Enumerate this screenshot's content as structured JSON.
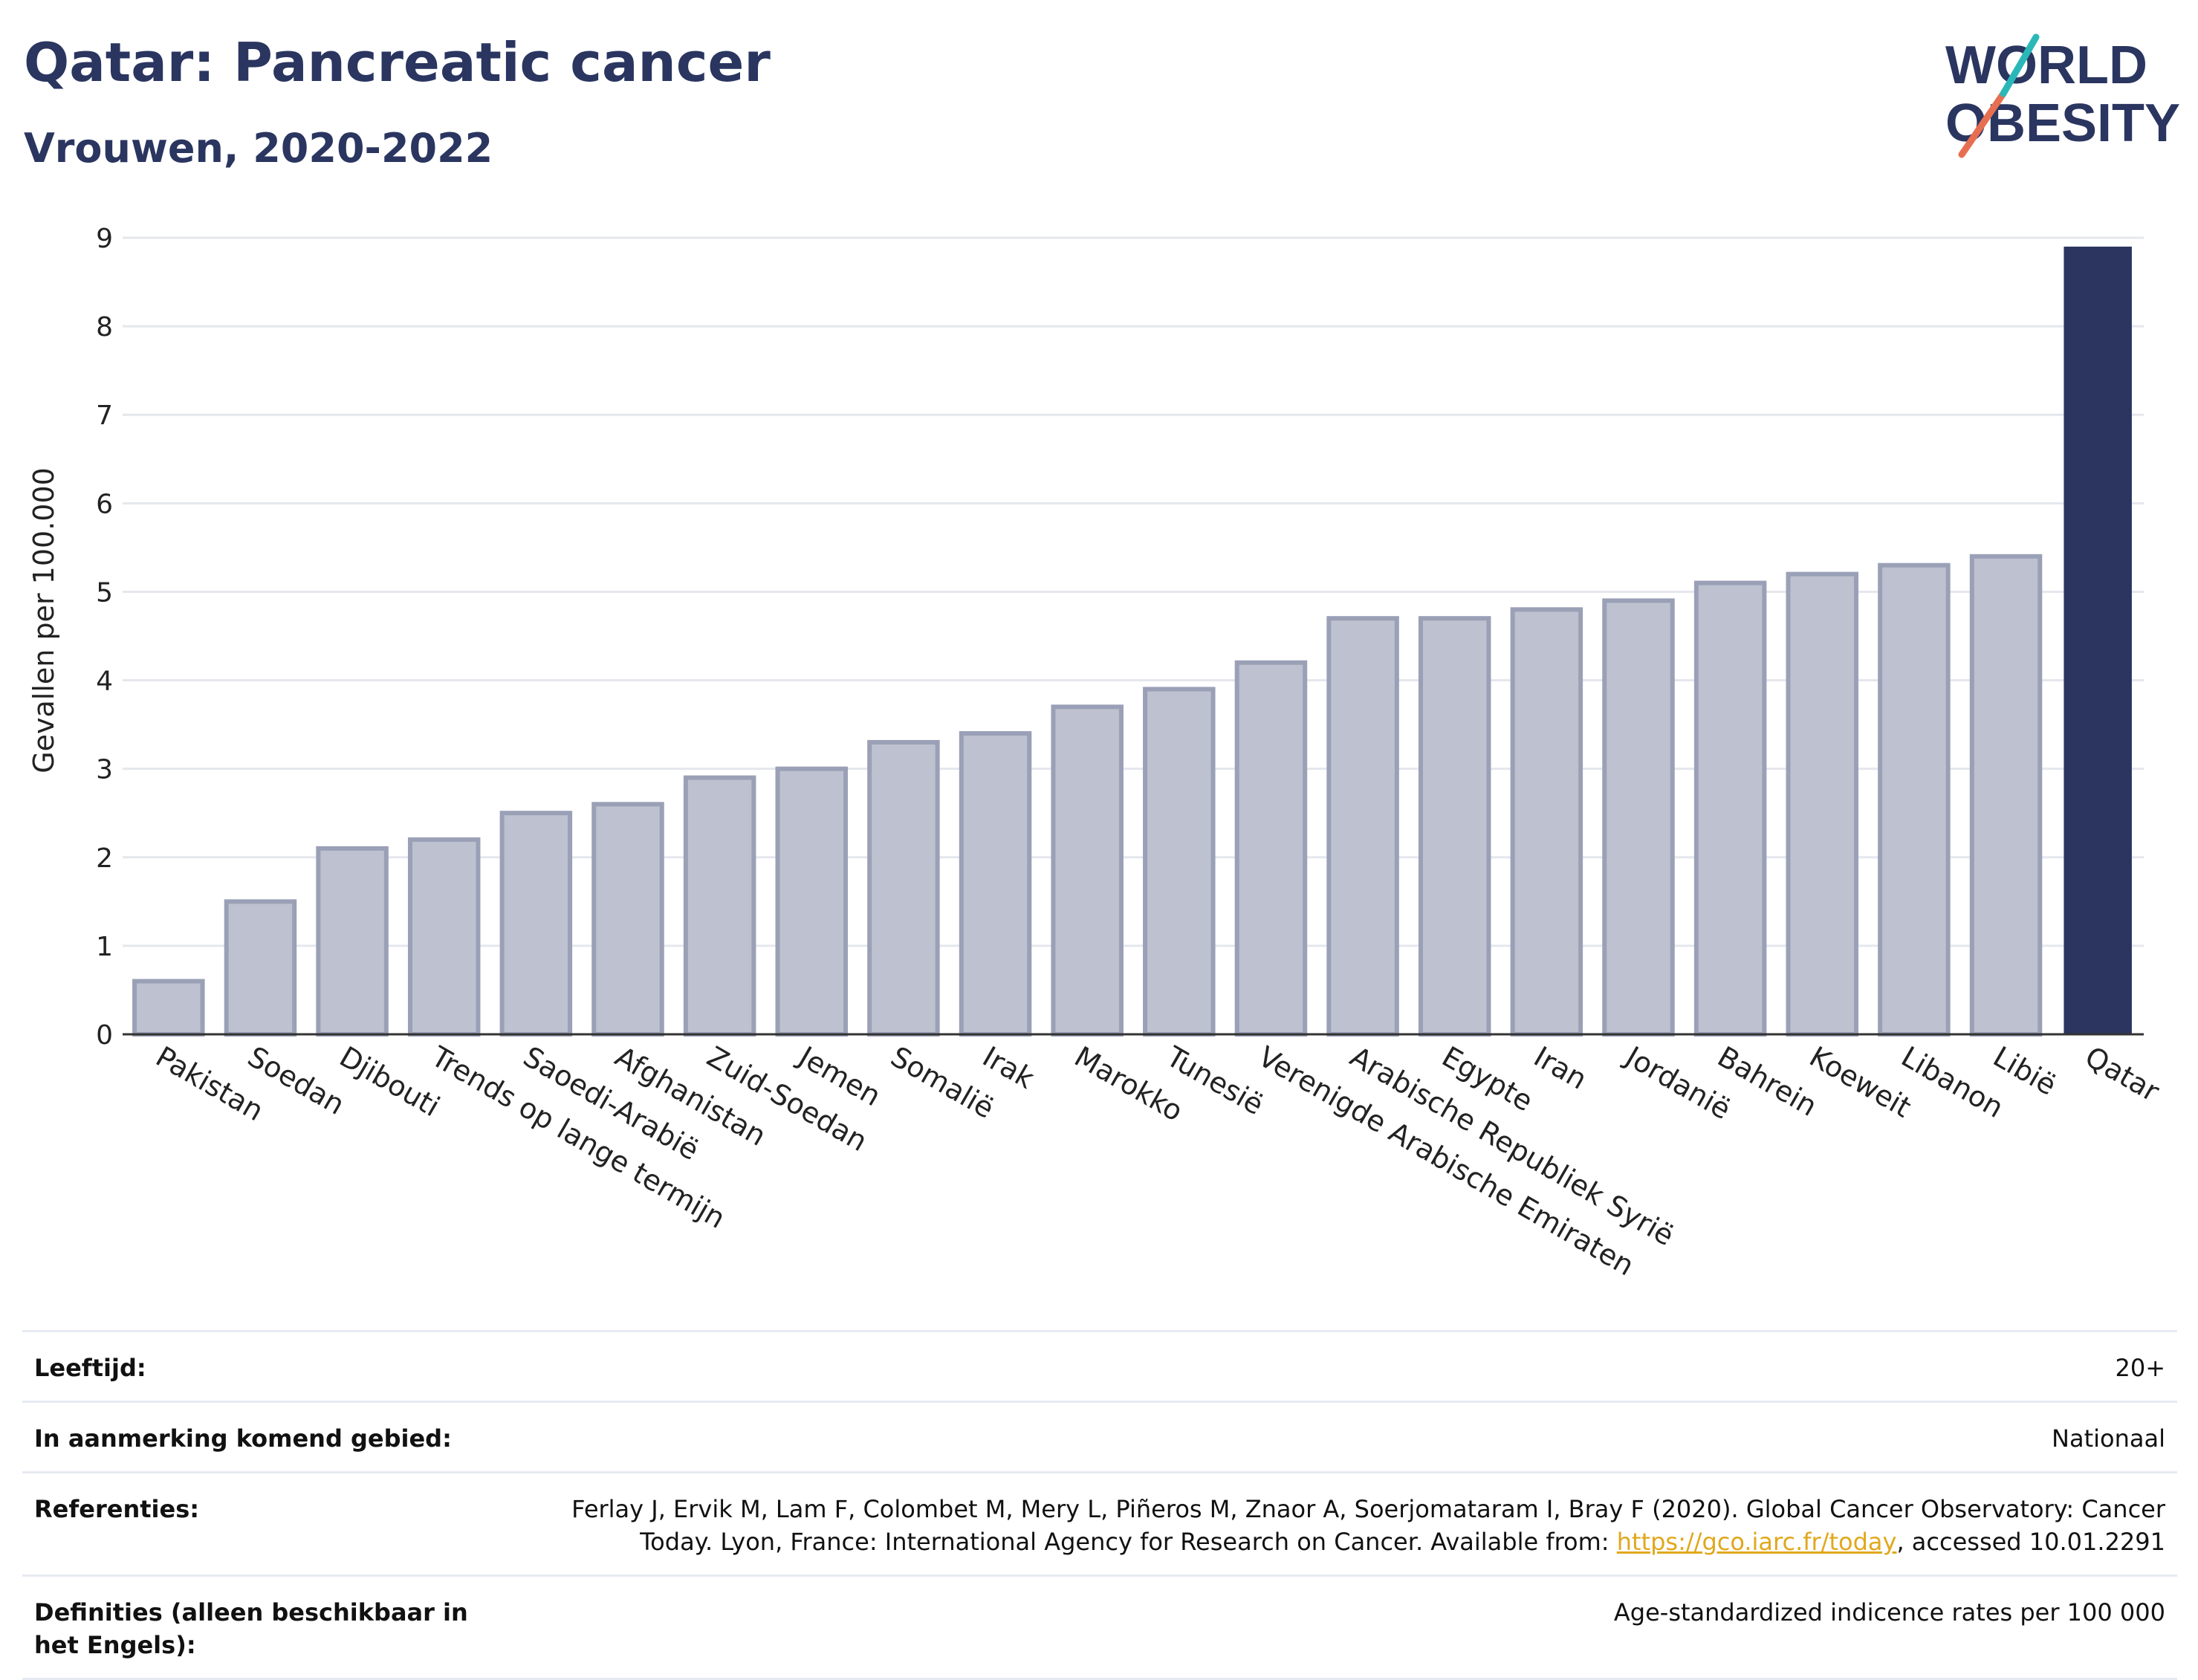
{
  "header": {
    "title": "Qatar: Pancreatic cancer",
    "subtitle": "Vrouwen, 2020-2022",
    "logo_line1": "WORLD",
    "logo_line2": "OBESITY"
  },
  "chart_data": {
    "type": "bar",
    "title": "",
    "xlabel": "",
    "ylabel": "Gevallen per 100.000",
    "ylim": [
      0,
      9
    ],
    "yticks": [
      0,
      1,
      2,
      3,
      4,
      5,
      6,
      7,
      8,
      9
    ],
    "grid": true,
    "categories": [
      "Pakistan",
      "Soedan",
      "Djibouti",
      "Trends op lange termijn",
      "Saoedi-Arabië",
      "Afghanistan",
      "Zuid-Soedan",
      "Jemen",
      "Somalië",
      "Irak",
      "Marokko",
      "Tunesië",
      "Verenigde Arabische Emiraten",
      "Arabische Republiek Syrië",
      "Egypte",
      "Iran",
      "Jordanië",
      "Bahrein",
      "Koeweit",
      "Libanon",
      "Libië",
      "Qatar"
    ],
    "values": [
      0.6,
      1.5,
      2.1,
      2.2,
      2.5,
      2.6,
      2.9,
      3.0,
      3.3,
      3.4,
      3.7,
      3.9,
      4.2,
      4.7,
      4.7,
      4.8,
      4.9,
      5.1,
      5.2,
      5.3,
      5.4,
      8.9
    ],
    "highlight": "Qatar",
    "colors": {
      "bar": "#bec1cf",
      "bar_edge": "#9aa0b6",
      "highlight": "#2b3560",
      "grid": "#e5e7ee",
      "axis": "#333333"
    }
  },
  "meta": {
    "age_label": "Leeftijd:",
    "age_value": "20+",
    "area_label": "In aanmerking komend gebied:",
    "area_value": "Nationaal",
    "ref_label": "Referenties:",
    "ref_text": "Ferlay J, Ervik M, Lam F, Colombet M, Mery L, Piñeros M, Znaor A, Soerjomataram I, Bray F (2020). Global Cancer Observatory: Cancer Today. Lyon, France: International Agency for Research on Cancer. Available from: ",
    "ref_link": "https://gco.iarc.fr/today",
    "ref_tail": ", accessed 10.01.2291",
    "def_label": "Definities (alleen beschikbaar in het Engels):",
    "def_value": "Age-standardized indicence rates per 100 000"
  }
}
